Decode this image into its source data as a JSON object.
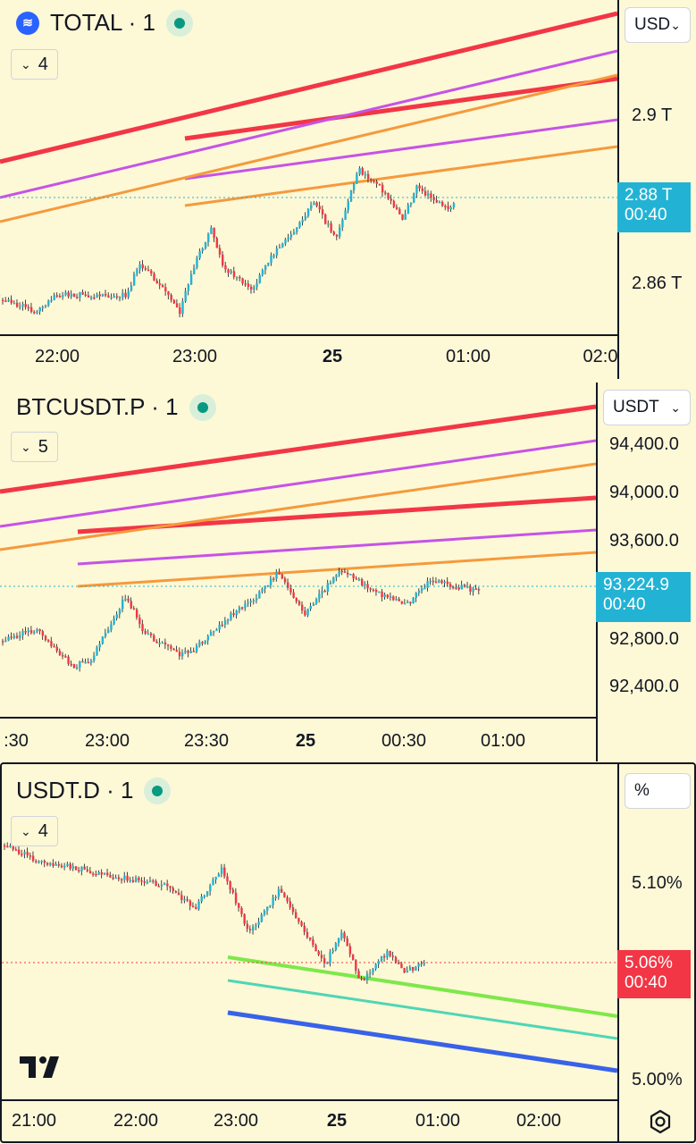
{
  "panels": [
    {
      "symbol": "TOTAL · 1",
      "interval_badge": "4",
      "currency": "USD",
      "price_labels": [
        "2.9 T",
        "2.86 T"
      ],
      "current_price": "2.88 T",
      "countdown": "00:40",
      "time_labels": [
        "22:00",
        "23:00",
        "25",
        "01:00",
        "02:0"
      ],
      "colors": {
        "tag": "#22b3d4",
        "red_line": "#f23645",
        "purple_line": "#c653e6",
        "orange_line": "#f59a3c"
      }
    },
    {
      "symbol": "BTCUSDT.P · 1",
      "interval_badge": "5",
      "currency": "USDT",
      "price_labels": [
        "94,400.0",
        "94,000.0",
        "93,600.0",
        "92,800.0",
        "92,400.0"
      ],
      "current_price": "93,224.9",
      "countdown": "00:40",
      "time_labels": [
        ":30",
        "23:00",
        "23:30",
        "25",
        "00:30",
        "01:00"
      ],
      "colors": {
        "tag": "#22b3d4",
        "red_line": "#f23645",
        "purple_line": "#c653e6",
        "orange_line": "#f59a3c"
      }
    },
    {
      "symbol": "USDT.D · 1",
      "interval_badge": "4",
      "currency": "%",
      "price_labels": [
        "5.10%",
        "5.00%"
      ],
      "current_price": "5.06%",
      "countdown": "00:40",
      "time_labels": [
        "21:00",
        "22:00",
        "23:00",
        "25",
        "01:00",
        "02:00"
      ],
      "colors": {
        "tag": "#f23645",
        "green_line": "#7ee84a",
        "teal_line": "#4fd6b4",
        "blue_line": "#3862e8"
      }
    }
  ],
  "icons": {
    "symbol_logo": "total-market-logo-icon",
    "collapse": "chevron-down-icon",
    "currency_dropdown": "chevron-down-icon",
    "brand": "tradingview-logo-icon",
    "settings": "settings-gear-icon"
  }
}
